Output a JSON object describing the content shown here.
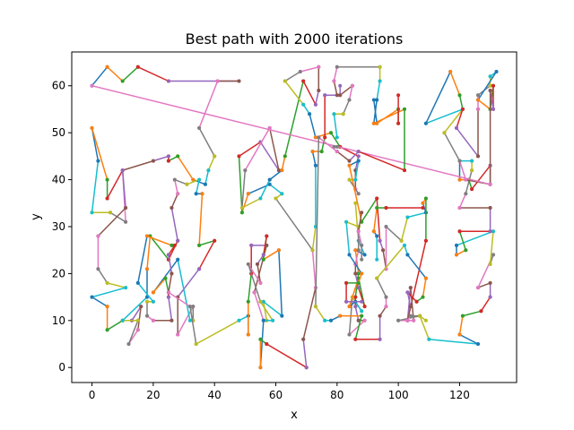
{
  "chart_data": {
    "type": "line",
    "title": "Best path with 2000 iterations",
    "xlabel": "x",
    "ylabel": "y",
    "xlim": [
      -6.6,
      138.6
    ],
    "ylim": [
      -3.2,
      67.2
    ],
    "xticks": [
      0,
      20,
      40,
      60,
      80,
      100,
      120
    ],
    "yticks": [
      0,
      10,
      20,
      30,
      40,
      50,
      60
    ],
    "grid": false,
    "legend": "none",
    "colors": [
      "#1f77b4",
      "#ff7f0e",
      "#2ca02c",
      "#d62728",
      "#9467bd",
      "#8c564b",
      "#e377c2",
      "#7f7f7f",
      "#bcbd22",
      "#17becf"
    ],
    "path": [
      [
        0,
        60
      ],
      [
        5,
        64
      ],
      [
        10,
        61
      ],
      [
        15,
        64
      ],
      [
        25,
        61
      ],
      [
        48,
        61
      ],
      [
        41,
        61
      ],
      [
        35,
        51
      ],
      [
        40,
        45
      ],
      [
        38,
        42
      ],
      [
        37,
        39
      ],
      [
        33,
        40
      ],
      [
        28,
        45
      ],
      [
        25,
        44
      ],
      [
        25,
        45
      ],
      [
        20,
        44
      ],
      [
        10,
        42
      ],
      [
        11,
        31
      ],
      [
        6,
        33
      ],
      [
        0,
        33
      ],
      [
        2,
        44
      ],
      [
        0,
        51
      ],
      [
        5,
        40
      ],
      [
        5,
        36
      ],
      [
        10,
        42
      ],
      [
        11,
        34
      ],
      [
        2,
        28
      ],
      [
        2,
        21
      ],
      [
        5,
        18
      ],
      [
        11,
        17
      ],
      [
        0,
        15
      ],
      [
        5,
        13
      ],
      [
        5,
        8
      ],
      [
        10,
        10
      ],
      [
        13,
        10
      ],
      [
        16,
        13
      ],
      [
        15,
        8
      ],
      [
        12,
        5
      ],
      [
        15,
        10
      ],
      [
        10,
        10
      ],
      [
        18,
        15
      ],
      [
        18,
        21
      ],
      [
        19,
        28
      ],
      [
        25,
        23
      ],
      [
        28,
        27
      ],
      [
        26,
        34
      ],
      [
        28,
        37
      ],
      [
        27,
        40
      ],
      [
        31,
        39
      ],
      [
        35,
        40
      ],
      [
        34,
        37
      ],
      [
        36,
        37
      ],
      [
        35,
        26
      ],
      [
        40,
        27
      ],
      [
        35,
        21
      ],
      [
        28,
        15
      ],
      [
        28,
        7
      ],
      [
        33,
        13
      ],
      [
        33,
        10
      ],
      [
        32,
        10
      ],
      [
        28,
        23
      ],
      [
        20,
        16
      ],
      [
        24,
        19
      ],
      [
        25,
        16
      ],
      [
        25,
        15
      ],
      [
        26,
        10
      ],
      [
        20,
        10
      ],
      [
        18,
        11
      ],
      [
        18,
        14
      ],
      [
        20,
        14
      ],
      [
        15,
        18
      ],
      [
        18,
        28
      ],
      [
        26,
        26
      ],
      [
        27,
        26
      ],
      [
        25,
        24
      ],
      [
        26,
        20
      ],
      [
        25,
        16
      ],
      [
        32,
        13
      ],
      [
        34,
        5
      ],
      [
        48,
        10
      ],
      [
        51,
        11
      ],
      [
        51,
        7
      ],
      [
        51,
        14
      ],
      [
        52,
        20
      ],
      [
        52,
        26
      ],
      [
        57,
        26
      ],
      [
        53,
        16
      ],
      [
        56,
        10
      ],
      [
        57,
        10
      ],
      [
        56,
        14
      ],
      [
        62,
        11
      ],
      [
        61,
        25
      ],
      [
        56,
        23
      ],
      [
        57,
        28
      ],
      [
        56,
        24
      ],
      [
        54,
        22
      ],
      [
        55,
        18
      ],
      [
        51,
        22
      ],
      [
        55,
        14
      ],
      [
        59,
        10
      ],
      [
        56,
        10
      ],
      [
        55,
        0
      ],
      [
        55,
        6
      ],
      [
        57,
        5
      ],
      [
        70,
        0
      ],
      [
        69,
        6
      ],
      [
        73,
        17
      ],
      [
        72,
        25
      ],
      [
        60,
        36
      ],
      [
        62,
        37
      ],
      [
        58,
        39
      ],
      [
        51,
        37
      ],
      [
        49,
        33
      ],
      [
        48,
        45
      ],
      [
        55,
        48
      ],
      [
        61,
        42
      ],
      [
        58,
        51
      ],
      [
        50,
        42
      ],
      [
        49,
        34
      ],
      [
        55,
        36
      ],
      [
        58,
        40
      ],
      [
        62,
        42
      ],
      [
        63,
        45
      ],
      [
        69,
        61
      ],
      [
        73,
        56
      ],
      [
        74,
        59
      ],
      [
        74,
        64
      ],
      [
        68,
        63
      ],
      [
        63,
        61
      ],
      [
        69,
        56
      ],
      [
        71,
        54
      ],
      [
        73,
        49
      ],
      [
        78,
        50
      ],
      [
        81,
        47
      ],
      [
        87,
        45
      ],
      [
        86,
        42
      ],
      [
        86,
        38
      ],
      [
        87,
        37
      ],
      [
        84,
        40
      ],
      [
        86,
        40
      ],
      [
        87,
        44
      ],
      [
        84,
        43
      ],
      [
        88,
        31
      ],
      [
        93,
        36
      ],
      [
        94,
        27
      ],
      [
        95,
        25
      ],
      [
        96,
        21
      ],
      [
        96,
        30
      ],
      [
        101,
        27
      ],
      [
        103,
        32
      ],
      [
        109,
        33
      ],
      [
        108,
        35
      ],
      [
        109,
        36
      ],
      [
        109,
        27
      ],
      [
        103,
        10
      ],
      [
        104,
        17
      ],
      [
        105,
        10
      ],
      [
        100,
        10
      ],
      [
        107,
        11
      ],
      [
        110,
        6
      ],
      [
        126,
        5
      ],
      [
        120,
        7
      ],
      [
        121,
        11
      ],
      [
        127,
        12
      ],
      [
        130,
        15
      ],
      [
        130,
        18
      ],
      [
        126,
        17
      ],
      [
        131,
        24
      ],
      [
        130,
        22
      ],
      [
        131,
        29
      ],
      [
        119,
        26
      ],
      [
        119,
        24
      ],
      [
        122,
        25
      ],
      [
        120,
        29
      ],
      [
        130,
        29
      ],
      [
        130,
        34
      ],
      [
        120,
        34
      ],
      [
        122,
        37
      ],
      [
        124,
        42
      ],
      [
        124,
        44
      ],
      [
        120,
        44
      ],
      [
        120,
        40
      ],
      [
        123,
        40
      ],
      [
        124,
        38
      ],
      [
        130,
        43
      ],
      [
        130,
        39
      ],
      [
        122,
        40
      ],
      [
        120,
        44
      ],
      [
        115,
        50
      ],
      [
        121,
        55
      ],
      [
        109,
        52
      ],
      [
        117,
        63
      ],
      [
        120,
        58
      ],
      [
        121,
        55
      ],
      [
        119,
        51
      ],
      [
        126,
        45
      ],
      [
        126,
        55
      ],
      [
        126,
        58
      ],
      [
        130,
        60
      ],
      [
        130,
        62
      ],
      [
        132,
        63
      ],
      [
        126,
        57
      ],
      [
        130,
        55
      ],
      [
        131,
        60
      ],
      [
        131,
        55
      ],
      [
        130,
        59
      ],
      [
        130,
        39
      ],
      [
        0,
        60
      ]
    ],
    "path_note": "",
    "extra_segments": [
      [
        [
          79,
          47
        ],
        [
          80,
          47
        ]
      ],
      [
        [
          86,
          35
        ],
        [
          87,
          27
        ],
        [
          89,
          24
        ],
        [
          86,
          25
        ],
        [
          87,
          20
        ],
        [
          86,
          15
        ],
        [
          86,
          13
        ],
        [
          87,
          10
        ],
        [
          89,
          10
        ],
        [
          84,
          7
        ],
        [
          85,
          15
        ],
        [
          88,
          12
        ],
        [
          86,
          14
        ],
        [
          84,
          13
        ],
        [
          87,
          19
        ],
        [
          89,
          13
        ],
        [
          87,
          17
        ],
        [
          86,
          20
        ],
        [
          86,
          22
        ],
        [
          87,
          25
        ],
        [
          87,
          30
        ],
        [
          83,
          31
        ],
        [
          84,
          24
        ],
        [
          88,
          20
        ],
        [
          87,
          18
        ],
        [
          83,
          18
        ],
        [
          83,
          14
        ],
        [
          88,
          14
        ]
      ],
      [
        [
          88,
          33
        ],
        [
          87,
          29
        ],
        [
          88,
          26
        ],
        [
          88,
          23
        ]
      ],
      [
        [
          72,
          25
        ],
        [
          73,
          30
        ],
        [
          73,
          43
        ],
        [
          72,
          46
        ],
        [
          75,
          46
        ],
        [
          76,
          49
        ],
        [
          76,
          58
        ],
        [
          80,
          58
        ],
        [
          79,
          61
        ],
        [
          80,
          64
        ],
        [
          94,
          64
        ],
        [
          94,
          61
        ],
        [
          93,
          57
        ],
        [
          92,
          52
        ],
        [
          102,
          55
        ],
        [
          102,
          42
        ],
        [
          87,
          46
        ],
        [
          84,
          44
        ],
        [
          80,
          46
        ],
        [
          74,
          49
        ],
        [
          73,
          13
        ],
        [
          76,
          10
        ],
        [
          78,
          10
        ],
        [
          81,
          11
        ],
        [
          88,
          11
        ],
        [
          86,
          6
        ],
        [
          94,
          6
        ],
        [
          94,
          11
        ],
        [
          96,
          13
        ],
        [
          96,
          15
        ],
        [
          93,
          19
        ],
        [
          102,
          26
        ],
        [
          103,
          24
        ],
        [
          109,
          19
        ],
        [
          108,
          15
        ],
        [
          106,
          14
        ],
        [
          103,
          16
        ],
        [
          104,
          13
        ],
        [
          103,
          10
        ],
        [
          104,
          11
        ],
        [
          107,
          11
        ],
        [
          109,
          10
        ]
      ],
      [
        [
          93,
          23
        ],
        [
          93,
          28
        ],
        [
          92,
          29
        ],
        [
          93,
          34
        ],
        [
          96,
          34
        ],
        [
          108,
          34
        ]
      ],
      [
        [
          81,
          60
        ],
        [
          81,
          58
        ],
        [
          85,
          60
        ],
        [
          84,
          57
        ],
        [
          82,
          54
        ],
        [
          79,
          54
        ],
        [
          80,
          49
        ]
      ],
      [
        [
          92,
          57
        ],
        [
          93,
          52
        ],
        [
          100,
          55
        ],
        [
          100,
          52
        ],
        [
          100,
          58
        ]
      ]
    ]
  }
}
